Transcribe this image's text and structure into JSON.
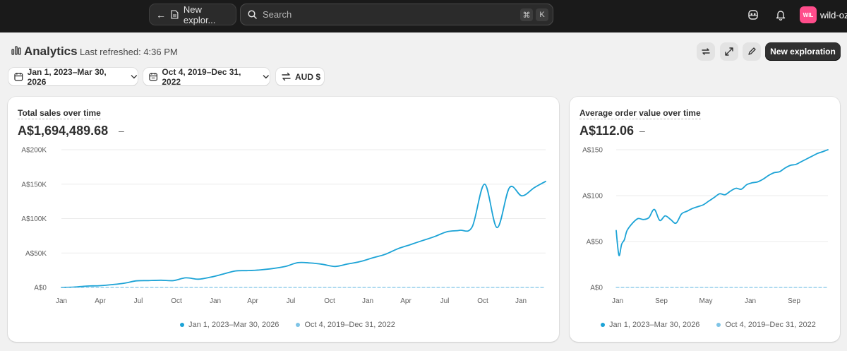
{
  "topbar": {
    "back_label": "New explor...",
    "search_placeholder": "Search",
    "shortcut_key1": "⌘",
    "shortcut_key2": "K",
    "store_initials": "WIL",
    "store_name": "wild-oz"
  },
  "header": {
    "title": "Analytics",
    "last_refreshed": "Last refreshed: 4:36 PM",
    "new_exploration_label": "New exploration"
  },
  "filters": {
    "date_range": "Jan 1, 2023–Mar 30, 2026",
    "comparison_range": "Oct 4, 2019–Dec 31, 2022",
    "currency": "AUD $"
  },
  "colors": {
    "primary_series": "#1ca3d6",
    "comparison_series": "#7fc4e6",
    "topbar_bg": "#1a1a1a",
    "avatar": "#ff4d8b"
  },
  "cards": [
    {
      "title": "Total sales over time",
      "value": "A$1,694,489.68",
      "value_change": "–",
      "legend": [
        "Jan 1, 2023–Mar 30, 2026",
        "Oct 4, 2019–Dec 31, 2022"
      ]
    },
    {
      "title": "Average order value over time",
      "value": "A$112.06",
      "value_change": "–",
      "legend": [
        "Jan 1, 2023–Mar 30, 2026",
        "Oct 4, 2019–Dec 31, 2022"
      ]
    }
  ],
  "chart_data": [
    {
      "type": "line",
      "title": "Total sales over time",
      "y_tick_labels": [
        "A$200K",
        "A$150K",
        "A$100K",
        "A$50K",
        "A$0"
      ],
      "y_ticks": [
        200000,
        150000,
        100000,
        50000,
        0
      ],
      "ylim": [
        0,
        200000
      ],
      "x_tick_labels": [
        "Jan",
        "Apr",
        "Jul",
        "Oct",
        "Jan",
        "Apr",
        "Jul",
        "Oct",
        "Jan",
        "Apr",
        "Jul",
        "Oct",
        "Jan"
      ],
      "xlim": [
        0,
        38.9
      ],
      "grid": true,
      "legend_position": "bottom",
      "series": [
        {
          "name": "Jan 1, 2023–Mar 30, 2026",
          "style": "solid",
          "x": [
            0,
            1,
            2,
            3,
            4,
            5,
            6,
            7,
            8,
            9,
            10,
            11,
            12,
            13,
            14,
            15,
            16,
            17,
            18,
            19,
            20,
            21,
            22,
            23,
            24,
            25,
            26,
            27,
            28,
            29,
            30,
            31,
            32,
            33,
            34,
            35,
            36,
            37,
            38,
            38.9
          ],
          "values": [
            0,
            500,
            2000,
            2500,
            4000,
            6000,
            9500,
            10000,
            10500,
            10000,
            14000,
            12000,
            15000,
            19500,
            24000,
            24500,
            25500,
            27500,
            30500,
            36000,
            35500,
            33500,
            30500,
            34000,
            37500,
            43000,
            48000,
            56000,
            62000,
            68000,
            74000,
            81000,
            83000,
            88000,
            150000,
            87000,
            145000,
            133000,
            145000,
            154000
          ]
        },
        {
          "name": "Oct 4, 2019–Dec 31, 2022",
          "style": "dashed",
          "x": [
            0,
            38.9
          ],
          "values": [
            0,
            0
          ]
        }
      ]
    },
    {
      "type": "line",
      "title": "Average order value over time",
      "y_tick_labels": [
        "A$150",
        "A$100",
        "A$50",
        "A$0"
      ],
      "y_ticks": [
        150,
        100,
        50,
        0
      ],
      "ylim": [
        0,
        150
      ],
      "x_tick_labels": [
        "Jan",
        "Sep",
        "May",
        "Jan",
        "Sep"
      ],
      "xlim": [
        0,
        38.9
      ],
      "grid": true,
      "legend_position": "bottom",
      "series": [
        {
          "name": "Jan 1, 2023–Mar 30, 2026",
          "style": "solid",
          "x": [
            0,
            0.5,
            1,
            1.5,
            2,
            3,
            4,
            5,
            6,
            7,
            8,
            9,
            10,
            11,
            12,
            13,
            14,
            15,
            16,
            17,
            18,
            19,
            20,
            21,
            22,
            23,
            24,
            25,
            26,
            27,
            28,
            29,
            30,
            31,
            32,
            33,
            34,
            35,
            36,
            37,
            38,
            38.9
          ],
          "values": [
            62,
            35,
            47,
            52,
            62,
            70,
            75,
            74,
            76,
            85,
            73,
            78,
            74,
            70,
            80,
            83,
            86,
            88,
            90,
            94,
            98,
            102,
            101,
            105,
            108,
            107,
            112,
            114,
            115,
            118,
            122,
            125,
            126,
            130,
            133,
            134,
            137,
            140,
            143,
            146,
            148,
            150
          ]
        },
        {
          "name": "Oct 4, 2019–Dec 31, 2022",
          "style": "dashed",
          "x": [
            0,
            38.9
          ],
          "values": [
            0,
            0
          ]
        }
      ]
    }
  ]
}
